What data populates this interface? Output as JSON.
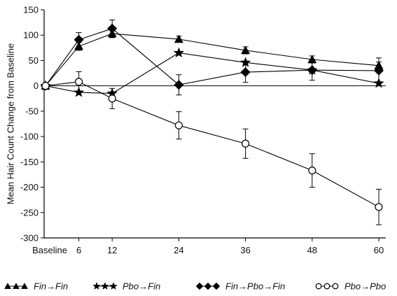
{
  "chart_data": {
    "type": "line",
    "ylabel": "Mean Hair Count Change from Baseline",
    "xlabel": "",
    "x_categories": [
      "Baseline",
      "6",
      "12",
      "24",
      "36",
      "48",
      "60"
    ],
    "x": [
      0,
      6,
      12,
      24,
      36,
      48,
      60
    ],
    "ylim": [
      -300,
      150
    ],
    "yticks": [
      -300,
      -250,
      -200,
      -150,
      -100,
      -50,
      0,
      50,
      100,
      150
    ],
    "grid": false,
    "legend_position": "bottom",
    "series": [
      {
        "name": "Fin→Fin",
        "marker": "triangle",
        "x": [
          0,
          6,
          12,
          24,
          36,
          48,
          60
        ],
        "values": [
          0,
          78,
          103,
          92,
          70,
          52,
          40
        ],
        "error": [
          0,
          8,
          8,
          6,
          7,
          7,
          7
        ]
      },
      {
        "name": "Pbo→Fin",
        "marker": "star",
        "x": [
          0,
          6,
          12,
          24,
          36,
          48,
          60
        ],
        "values": [
          0,
          -13,
          -15,
          65,
          46,
          31,
          5
        ],
        "error": [
          0,
          0,
          0,
          0,
          0,
          0,
          0
        ]
      },
      {
        "name": "Fin→Pbo→Fin",
        "marker": "diamond",
        "x": [
          0,
          6,
          12,
          24,
          36,
          48,
          60
        ],
        "values": [
          0,
          91,
          113,
          2,
          27,
          31,
          30
        ],
        "error": [
          0,
          14,
          17,
          20,
          20,
          20,
          25
        ]
      },
      {
        "name": "Pbo→Pbo",
        "marker": "circle",
        "x": [
          0,
          6,
          12,
          24,
          36,
          48,
          60
        ],
        "values": [
          0,
          8,
          -25,
          -78,
          -114,
          -167,
          -239
        ],
        "error": [
          0,
          20,
          20,
          27,
          29,
          33,
          35
        ]
      }
    ]
  }
}
